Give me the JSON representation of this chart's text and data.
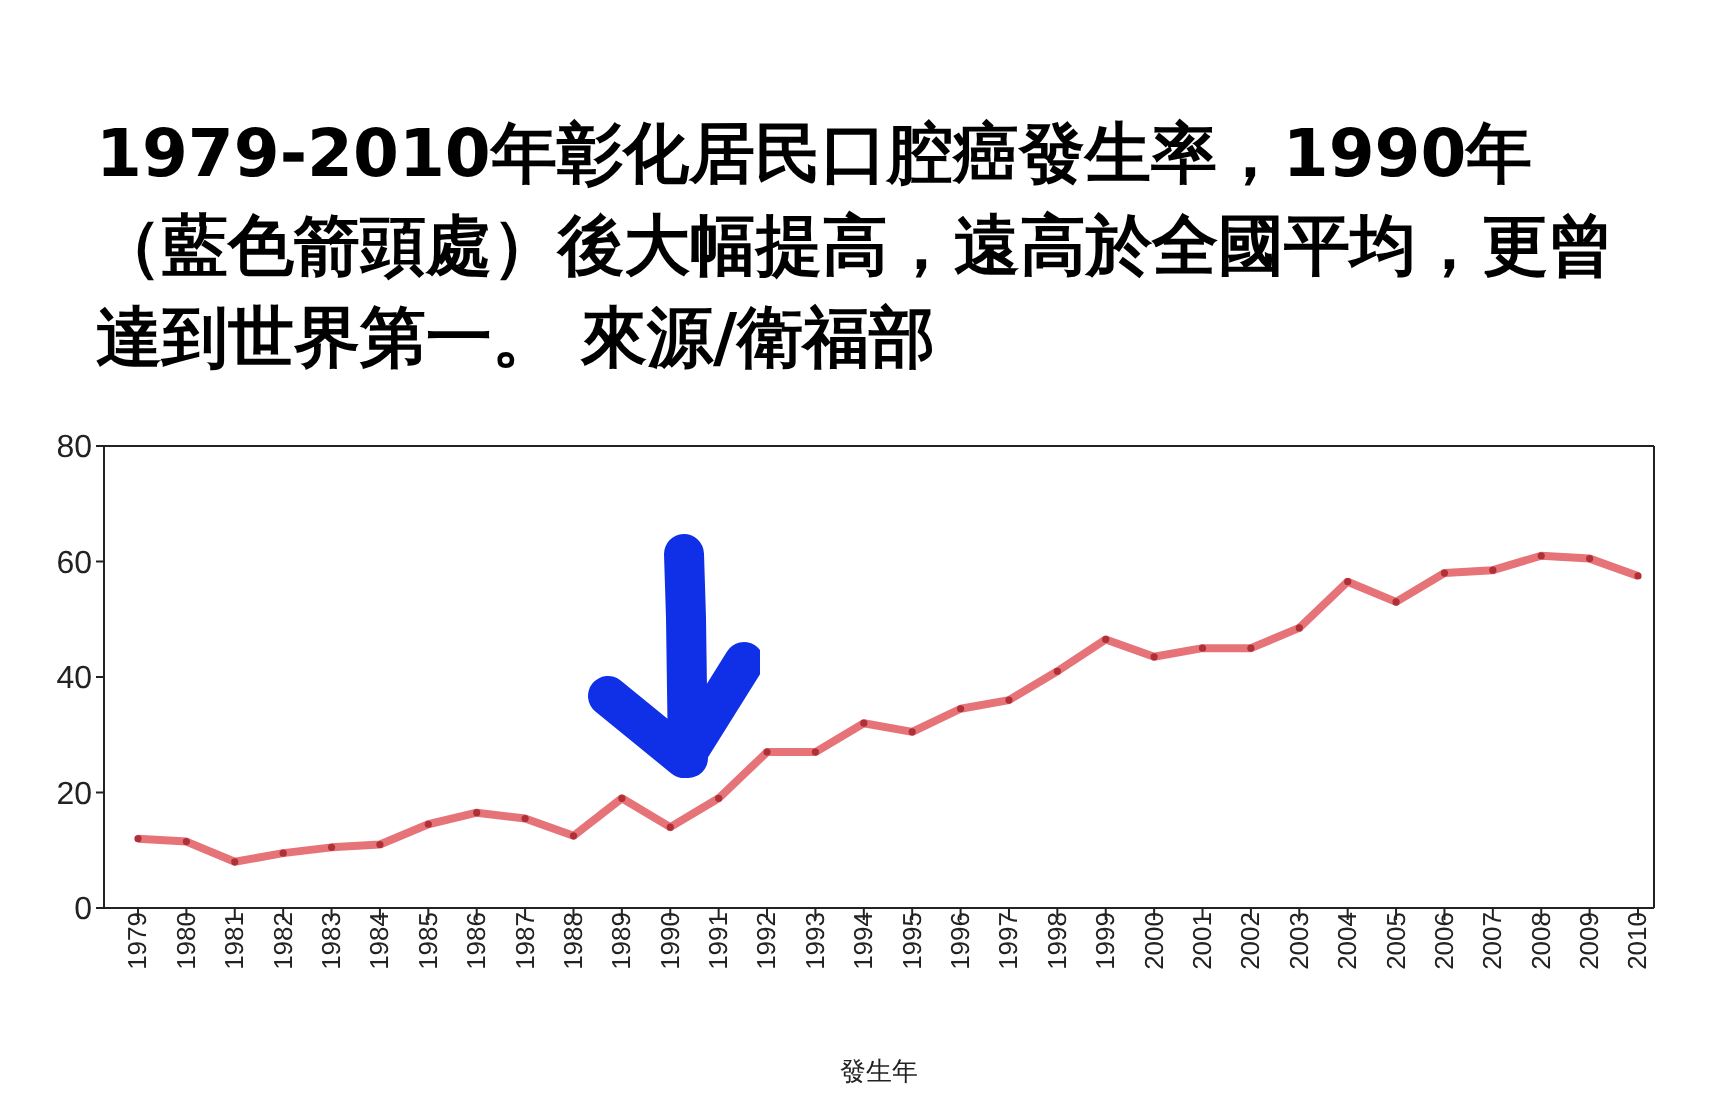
{
  "chart_data": {
    "type": "line",
    "title": "1979-2010年彰化居民口腔癌發生率，1990年（藍色箭頭處）後大幅提高，遠高於全國平均，更曾達到世界第一。 來源/衛福部",
    "xlabel": "發生年",
    "categories": [
      "1979",
      "1980",
      "1981",
      "1982",
      "1983",
      "1984",
      "1985",
      "1986",
      "1987",
      "1988",
      "1989",
      "1990",
      "1991",
      "1992",
      "1993",
      "1994",
      "1995",
      "1996",
      "1997",
      "1998",
      "1999",
      "2000",
      "2001",
      "2002",
      "2003",
      "2004",
      "2005",
      "2006",
      "2007",
      "2008",
      "2009",
      "2010"
    ],
    "values": [
      12,
      11.5,
      8,
      9.5,
      10.5,
      11,
      14.5,
      16.5,
      15.5,
      12.5,
      19,
      14,
      19,
      27,
      27,
      32,
      30.5,
      34.5,
      36,
      41,
      46.5,
      43.5,
      45,
      45,
      48.5,
      56.5,
      53,
      58,
      58.5,
      61,
      60.5,
      57.5
    ],
    "color": "#e05a60",
    "ylim": [
      0,
      80
    ],
    "yticks": [
      0,
      20,
      40,
      60,
      80
    ],
    "grid": false,
    "legend": false,
    "marker": "circle",
    "line_style": "solid"
  }
}
